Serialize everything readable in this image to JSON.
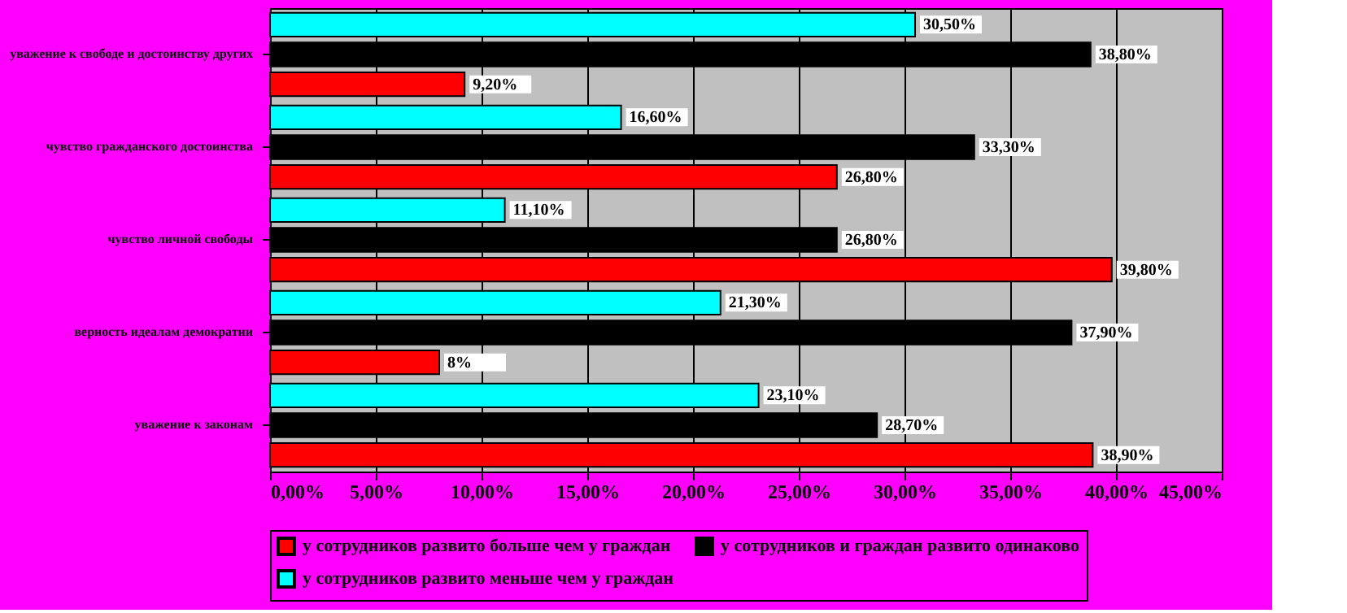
{
  "chart_data": {
    "type": "bar",
    "orientation": "horizontal",
    "categories": [
      "уважение к свободе и достоинству других",
      "чувство гражданского достоинства",
      "чувство личной свободы",
      "верность идеалам демократии",
      "уважение к законам"
    ],
    "series": [
      {
        "name": "у сотрудников развито больше чем у граждан",
        "color": "#ff0000",
        "values": [
          9.2,
          26.8,
          39.8,
          8,
          38.9
        ],
        "value_labels": [
          "9,20%",
          "26,80%",
          "39,80%",
          "8%",
          "38,90%"
        ]
      },
      {
        "name": "у сотрудников и граждан развито одинаково",
        "color": "#000000",
        "values": [
          38.8,
          33.3,
          26.8,
          37.9,
          28.7
        ],
        "value_labels": [
          "38,80%",
          "33,30%",
          "26,80%",
          "37,90%",
          "28,70%"
        ]
      },
      {
        "name": "у сотрудников развито меньше чем у граждан",
        "color": "#00ffff",
        "values": [
          30.5,
          16.6,
          11.1,
          21.3,
          23.1
        ],
        "value_labels": [
          "30,50%",
          "16,60%",
          "11,10%",
          "21,30%",
          "23,10%"
        ]
      }
    ],
    "xlim": [
      0,
      45
    ],
    "xticks": [
      {
        "value": 0,
        "label": "0,00%"
      },
      {
        "value": 5,
        "label": "5,00%"
      },
      {
        "value": 10,
        "label": "10,00%"
      },
      {
        "value": 15,
        "label": "15,00%"
      },
      {
        "value": 20,
        "label": "20,00%"
      },
      {
        "value": 25,
        "label": "25,00%"
      },
      {
        "value": 30,
        "label": "30,00%"
      },
      {
        "value": 35,
        "label": "35,00%"
      },
      {
        "value": 40,
        "label": "40,00%"
      },
      {
        "value": 45,
        "label": "45,00%"
      }
    ],
    "grid": "x",
    "legend": "bottom"
  }
}
